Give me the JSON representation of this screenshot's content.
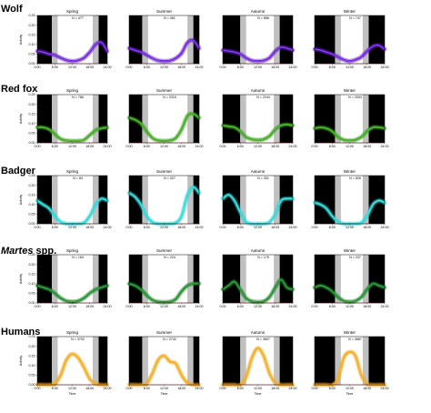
{
  "chart_data": {
    "type": "line",
    "description_of_layout": "grid",
    "seasons": [
      "Spring",
      "Summer",
      "Autumn",
      "Winter"
    ],
    "xlabel": "Time",
    "ylabel": "Activity",
    "x_ticks": [
      "0:00",
      "6:00",
      "12:00",
      "18:00",
      "24:00"
    ],
    "xlim": [
      0,
      24
    ],
    "ylim": [
      0,
      0.25
    ],
    "y_ticks": [
      "0.00",
      "0.05",
      "0.10",
      "0.15",
      "0.20",
      "0.25"
    ],
    "night_color": "#000000",
    "twilight_color": "#c0c0c0",
    "rows": [
      {
        "species": "Wolf",
        "italic": false,
        "color": "#6a1fd6",
        "panels": [
          {
            "n_label": "N = 477",
            "x": [
              0,
              2,
              4,
              6,
              8,
              10,
              12,
              14,
              16,
              18,
              20,
              22,
              24
            ],
            "y": [
              0.065,
              0.06,
              0.05,
              0.045,
              0.03,
              0.018,
              0.013,
              0.017,
              0.03,
              0.06,
              0.1,
              0.11,
              0.065
            ]
          },
          {
            "n_label": "N = 461",
            "x": [
              0,
              2,
              4,
              6,
              8,
              10,
              12,
              14,
              16,
              18,
              20,
              22,
              24
            ],
            "y": [
              0.08,
              0.07,
              0.06,
              0.045,
              0.028,
              0.016,
              0.013,
              0.015,
              0.028,
              0.055,
              0.11,
              0.12,
              0.08
            ]
          },
          {
            "n_label": "N = 866",
            "x": [
              0,
              2,
              4,
              6,
              8,
              10,
              12,
              14,
              16,
              18,
              20,
              22,
              24
            ],
            "y": [
              0.07,
              0.065,
              0.06,
              0.05,
              0.03,
              0.016,
              0.013,
              0.016,
              0.03,
              0.065,
              0.085,
              0.08,
              0.07
            ]
          },
          {
            "n_label": "N = 747",
            "x": [
              0,
              2,
              4,
              6,
              8,
              10,
              12,
              14,
              16,
              18,
              20,
              22,
              24
            ],
            "y": [
              0.075,
              0.07,
              0.06,
              0.05,
              0.035,
              0.02,
              0.013,
              0.02,
              0.035,
              0.065,
              0.09,
              0.095,
              0.075
            ]
          }
        ]
      },
      {
        "species": "Red fox",
        "italic": false,
        "color": "#3aa51a",
        "panels": [
          {
            "n_label": "N = 786",
            "x": [
              0,
              2,
              4,
              6,
              8,
              10,
              12,
              14,
              16,
              18,
              20,
              22,
              24
            ],
            "y": [
              0.08,
              0.08,
              0.07,
              0.045,
              0.02,
              0.012,
              0.01,
              0.01,
              0.015,
              0.04,
              0.065,
              0.075,
              0.08
            ]
          },
          {
            "n_label": "N = 2315",
            "x": [
              0,
              2,
              4,
              6,
              8,
              10,
              12,
              14,
              16,
              18,
              20,
              22,
              24
            ],
            "y": [
              0.13,
              0.12,
              0.1,
              0.06,
              0.025,
              0.012,
              0.01,
              0.012,
              0.025,
              0.07,
              0.14,
              0.15,
              0.13
            ]
          },
          {
            "n_label": "N = 2244",
            "x": [
              0,
              2,
              4,
              6,
              8,
              10,
              12,
              14,
              16,
              18,
              20,
              22,
              24
            ],
            "y": [
              0.09,
              0.085,
              0.08,
              0.06,
              0.03,
              0.018,
              0.015,
              0.018,
              0.035,
              0.07,
              0.09,
              0.095,
              0.09
            ]
          },
          {
            "n_label": "N = 2003",
            "x": [
              0,
              2,
              4,
              6,
              8,
              10,
              12,
              14,
              16,
              18,
              20,
              22,
              24
            ],
            "y": [
              0.075,
              0.08,
              0.075,
              0.06,
              0.03,
              0.015,
              0.012,
              0.015,
              0.03,
              0.06,
              0.08,
              0.08,
              0.075
            ]
          }
        ]
      },
      {
        "species": "Badger",
        "italic": false,
        "color": "#29d6d6",
        "panels": [
          {
            "n_label": "N = 84",
            "x": [
              0,
              2,
              4,
              6,
              8,
              10,
              12,
              14,
              16,
              18,
              20,
              22,
              24
            ],
            "y": [
              0.12,
              0.1,
              0.08,
              0.04,
              0.01,
              0.0,
              0.0,
              0.0,
              0.005,
              0.04,
              0.1,
              0.13,
              0.12
            ]
          },
          {
            "n_label": "N = 327",
            "x": [
              0,
              2,
              4,
              6,
              8,
              10,
              12,
              14,
              16,
              18,
              20,
              22,
              24
            ],
            "y": [
              0.16,
              0.14,
              0.1,
              0.04,
              0.008,
              0.0,
              0.0,
              0.0,
              0.005,
              0.04,
              0.15,
              0.19,
              0.16
            ]
          },
          {
            "n_label": "N = 301",
            "x": [
              0,
              2,
              4,
              6,
              8,
              10,
              12,
              14,
              16,
              18,
              20,
              22,
              24
            ],
            "y": [
              0.13,
              0.15,
              0.12,
              0.06,
              0.01,
              0.0,
              0.0,
              0.0,
              0.008,
              0.05,
              0.12,
              0.13,
              0.13
            ]
          },
          {
            "n_label": "N = 826",
            "x": [
              0,
              2,
              4,
              6,
              8,
              10,
              12,
              14,
              16,
              18,
              20,
              22,
              24
            ],
            "y": [
              0.11,
              0.1,
              0.08,
              0.04,
              0.01,
              0.0,
              0.0,
              0.0,
              0.005,
              0.04,
              0.1,
              0.12,
              0.11
            ]
          }
        ]
      },
      {
        "species": "Martes spp.",
        "italic_part": "Martes",
        "rest_part": " spp.",
        "color": "#1a8a2a",
        "panels": [
          {
            "n_label": "N = 163",
            "x": [
              0,
              2,
              4,
              6,
              8,
              10,
              12,
              14,
              16,
              18,
              20,
              22,
              24
            ],
            "y": [
              0.09,
              0.08,
              0.07,
              0.05,
              0.025,
              0.01,
              0.006,
              0.01,
              0.025,
              0.05,
              0.07,
              0.08,
              0.09
            ]
          },
          {
            "n_label": "N = 224",
            "x": [
              0,
              2,
              4,
              6,
              8,
              10,
              12,
              14,
              16,
              18,
              20,
              22,
              24
            ],
            "y": [
              0.1,
              0.09,
              0.07,
              0.04,
              0.015,
              0.006,
              0.004,
              0.006,
              0.02,
              0.06,
              0.09,
              0.1,
              0.1
            ]
          },
          {
            "n_label": "N = 175",
            "x": [
              0,
              2,
              4,
              6,
              8,
              10,
              12,
              14,
              16,
              18,
              20,
              22,
              24
            ],
            "y": [
              0.07,
              0.09,
              0.11,
              0.07,
              0.025,
              0.008,
              0.005,
              0.008,
              0.03,
              0.08,
              0.12,
              0.08,
              0.07
            ]
          },
          {
            "n_label": "N = 237",
            "x": [
              0,
              2,
              4,
              6,
              8,
              10,
              12,
              14,
              16,
              18,
              20,
              22,
              24
            ],
            "y": [
              0.08,
              0.09,
              0.08,
              0.06,
              0.03,
              0.01,
              0.006,
              0.01,
              0.03,
              0.07,
              0.1,
              0.09,
              0.08
            ]
          }
        ]
      },
      {
        "species": "Humans",
        "italic": false,
        "color": "#f2a91a",
        "panels": [
          {
            "n_label": "N = 3702",
            "x": [
              0,
              2,
              4,
              6,
              8,
              10,
              12,
              14,
              16,
              18,
              20,
              22,
              24
            ],
            "y": [
              0.0,
              0.0,
              0.0,
              0.005,
              0.05,
              0.13,
              0.16,
              0.14,
              0.09,
              0.03,
              0.005,
              0.0,
              0.0
            ]
          },
          {
            "n_label": "N = 2742",
            "x": [
              0,
              2,
              4,
              6,
              8,
              10,
              12,
              14,
              16,
              18,
              20,
              22,
              24
            ],
            "y": [
              0.0,
              0.0,
              0.0,
              0.005,
              0.06,
              0.13,
              0.15,
              0.12,
              0.11,
              0.05,
              0.01,
              0.0,
              0.0
            ]
          },
          {
            "n_label": "N = 3807",
            "x": [
              0,
              2,
              4,
              6,
              8,
              10,
              12,
              14,
              16,
              18,
              20,
              22,
              24
            ],
            "y": [
              0.0,
              0.0,
              0.0,
              0.0,
              0.04,
              0.14,
              0.19,
              0.15,
              0.06,
              0.01,
              0.0,
              0.0,
              0.0
            ]
          },
          {
            "n_label": "N = 3887",
            "x": [
              0,
              2,
              4,
              6,
              8,
              10,
              12,
              14,
              16,
              18,
              20,
              22,
              24
            ],
            "y": [
              0.0,
              0.0,
              0.0,
              0.0,
              0.03,
              0.14,
              0.17,
              0.15,
              0.05,
              0.005,
              0.0,
              0.0,
              0.0
            ]
          }
        ]
      }
    ],
    "twilight_by_season": [
      {
        "morning": [
          5.0,
          7.0
        ],
        "evening": [
          19.0,
          21.0
        ]
      },
      {
        "morning": [
          4.5,
          6.5
        ],
        "evening": [
          20.0,
          22.0
        ]
      },
      {
        "morning": [
          6.0,
          8.0
        ],
        "evening": [
          17.5,
          19.5
        ]
      },
      {
        "morning": [
          7.0,
          9.0
        ],
        "evening": [
          16.5,
          18.5
        ]
      }
    ]
  }
}
